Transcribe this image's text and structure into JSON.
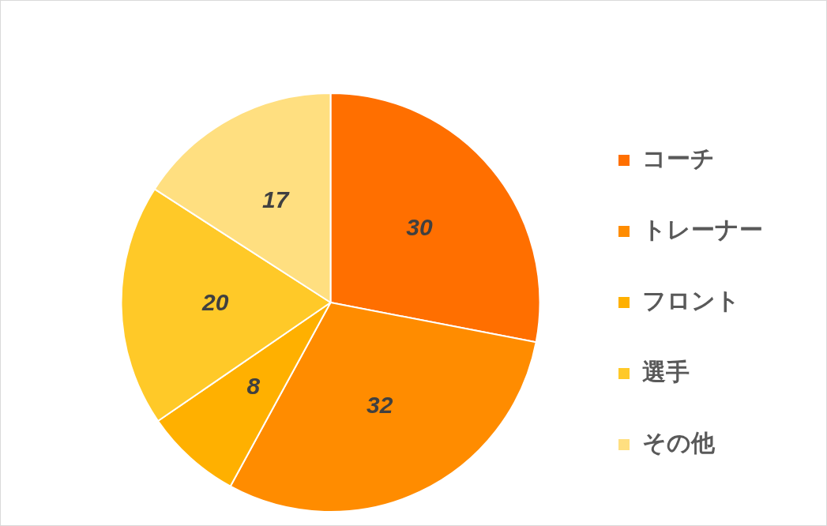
{
  "chart_data": {
    "type": "pie",
    "categories": [
      "コーチ",
      "トレーナー",
      "フロント",
      "選手",
      "その他"
    ],
    "values": [
      30,
      32,
      8,
      20,
      17
    ],
    "colors": [
      "#ff6f00",
      "#ff8c00",
      "#ffb000",
      "#ffc928",
      "#ffdf80"
    ],
    "data_labels": true,
    "legend": "right"
  }
}
